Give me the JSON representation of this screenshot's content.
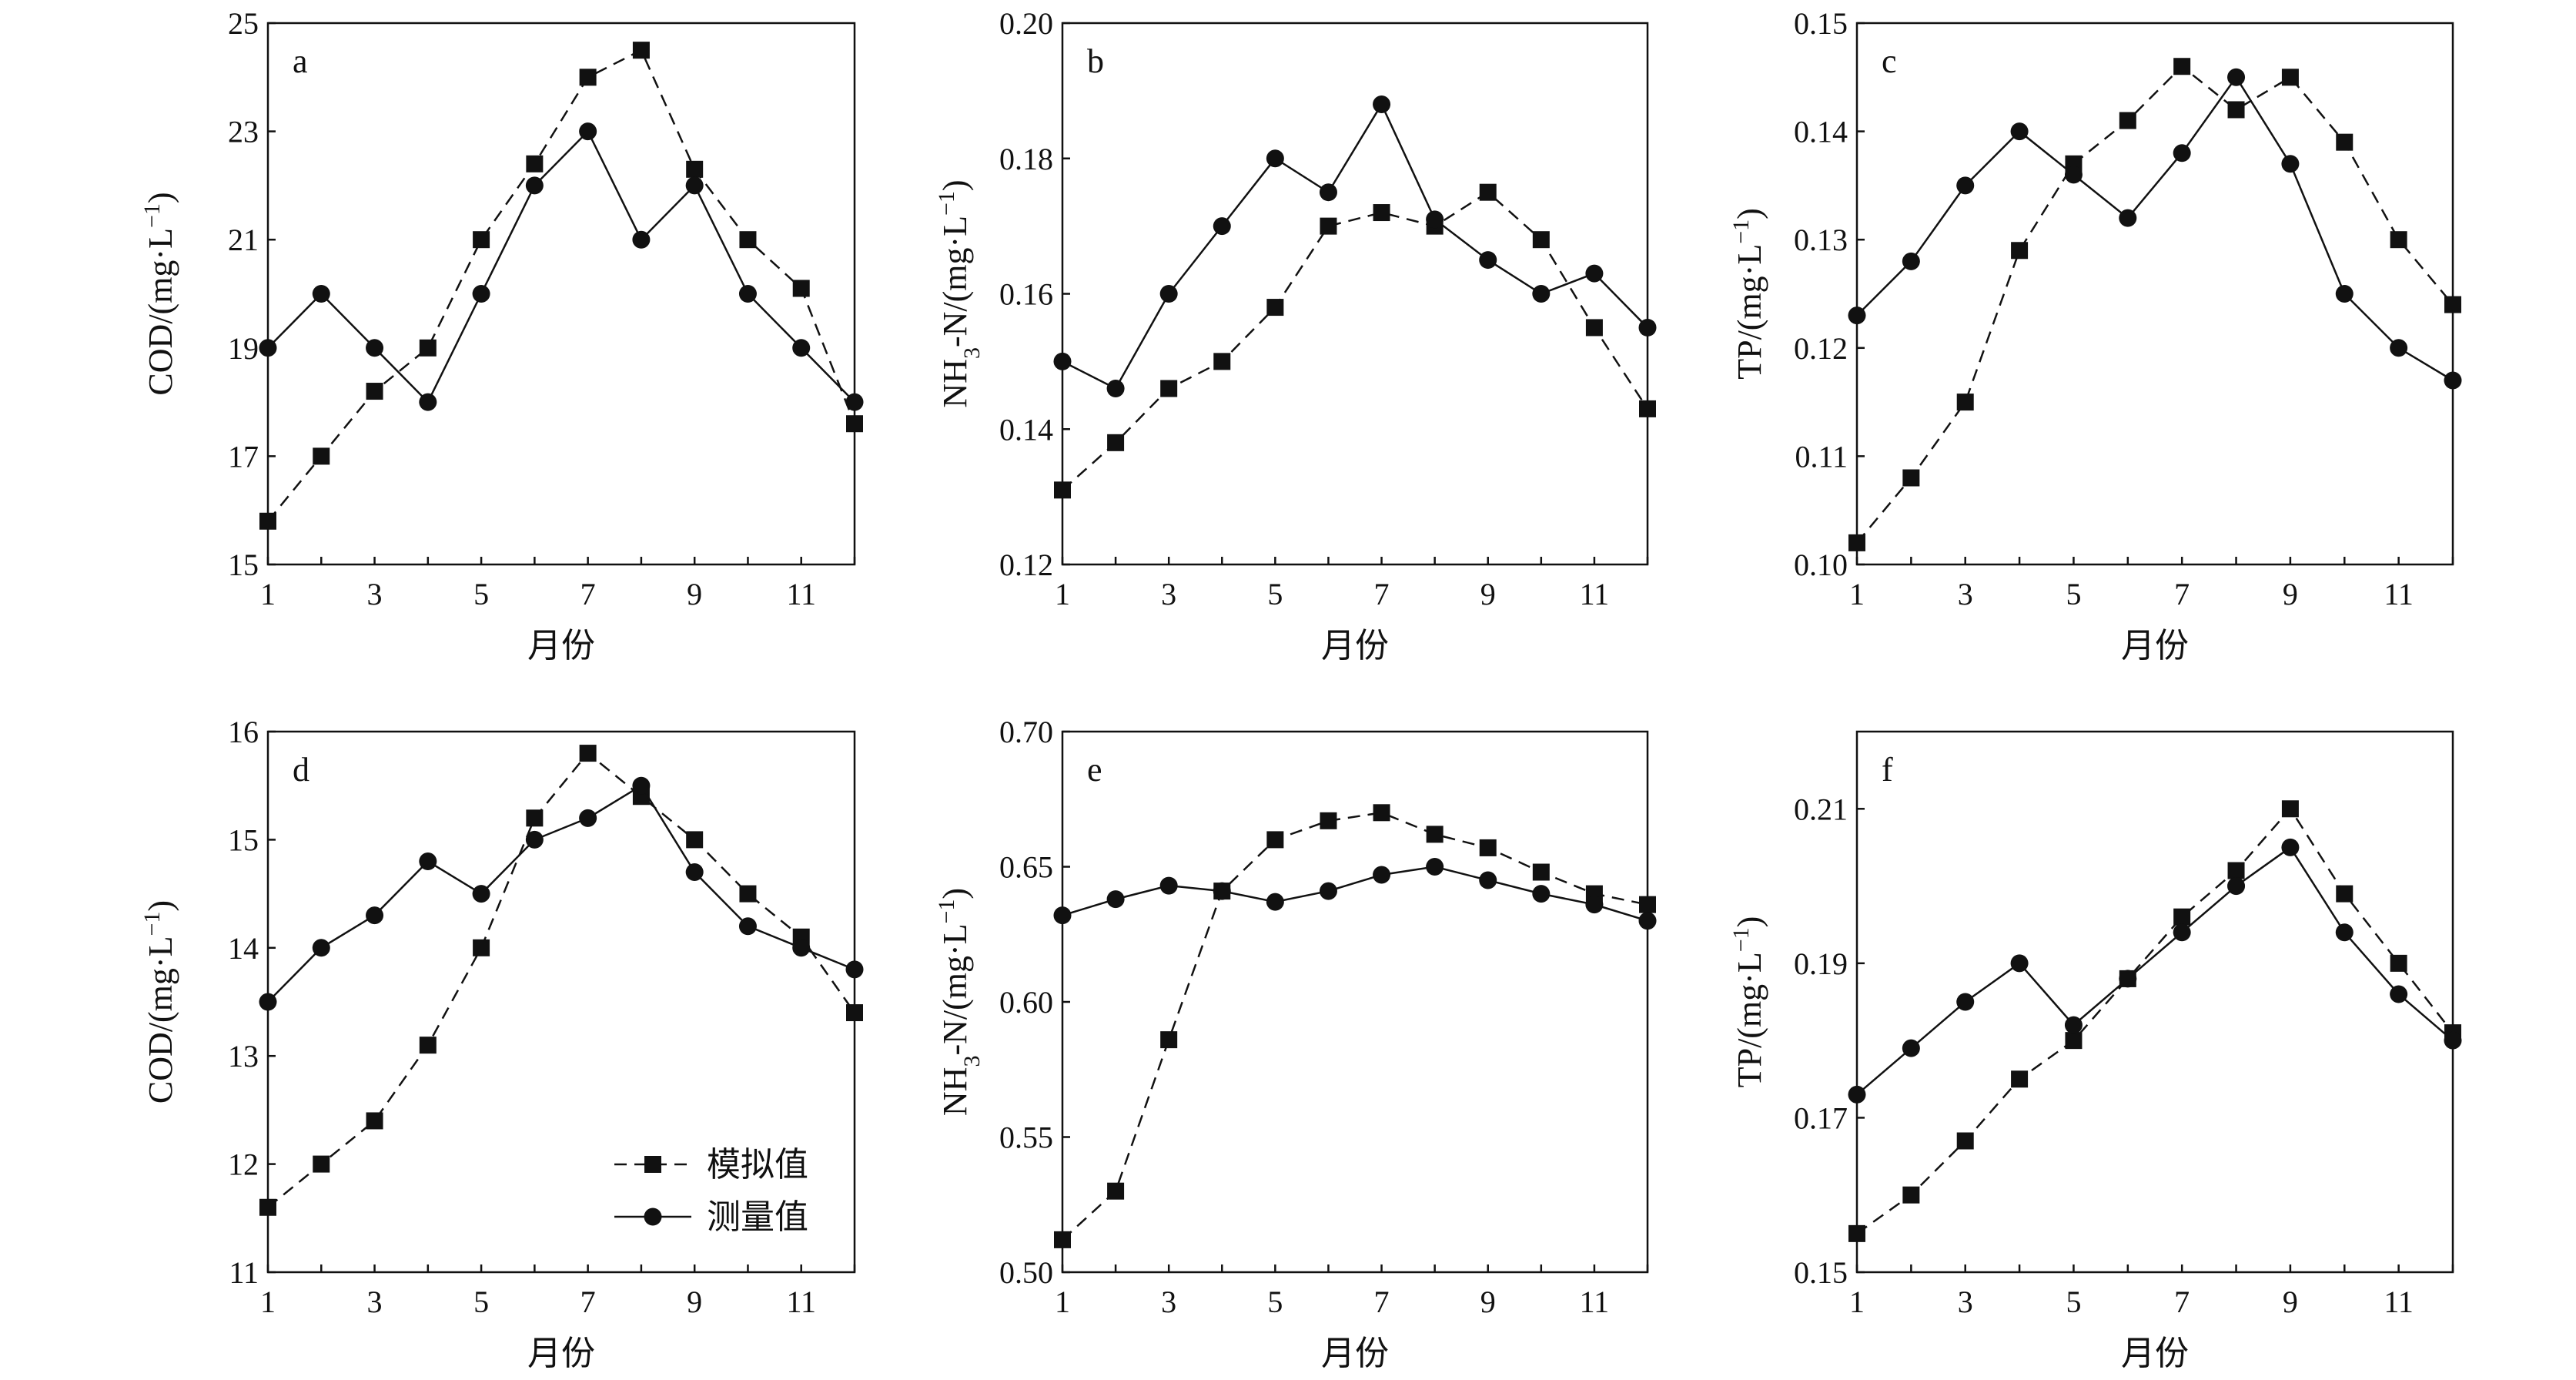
{
  "figure": {
    "legend": {
      "simulated_label": "模拟值",
      "measured_label": "测量值"
    }
  },
  "chart_data": [
    {
      "type": "line",
      "panel": "a",
      "ylabel": "COD/(mg·L⁻¹)",
      "xlabel": "月份",
      "xlim": [
        1,
        12
      ],
      "xticks": [
        1,
        3,
        5,
        7,
        9,
        11
      ],
      "ylim": [
        15,
        25
      ],
      "yticks": [
        15,
        17,
        19,
        21,
        23,
        25
      ],
      "ytick_labels": [
        "15",
        "17",
        "19",
        "21",
        "23",
        "25"
      ],
      "x": [
        1,
        2,
        3,
        4,
        5,
        6,
        7,
        8,
        9,
        10,
        11,
        12
      ],
      "series": [
        {
          "name": "模拟值",
          "marker": "square",
          "line": "dashed",
          "values": [
            15.8,
            17.0,
            18.2,
            19.0,
            21.0,
            22.4,
            24.0,
            24.5,
            22.3,
            21.0,
            20.1,
            17.6
          ]
        },
        {
          "name": "测量值",
          "marker": "circle",
          "line": "solid",
          "values": [
            19.0,
            20.0,
            19.0,
            18.0,
            20.0,
            22.0,
            23.0,
            21.0,
            22.0,
            20.0,
            19.0,
            18.0
          ]
        }
      ]
    },
    {
      "type": "line",
      "panel": "b",
      "ylabel": "NH3-N/(mg·L⁻¹)",
      "xlabel": "月份",
      "xlim": [
        1,
        12
      ],
      "xticks": [
        1,
        3,
        5,
        7,
        9,
        11
      ],
      "ylim": [
        0.12,
        0.2
      ],
      "yticks": [
        0.12,
        0.14,
        0.16,
        0.18,
        0.2
      ],
      "ytick_labels": [
        "0.12",
        "0.14",
        "0.16",
        "0.18",
        "0.20"
      ],
      "x": [
        1,
        2,
        3,
        4,
        5,
        6,
        7,
        8,
        9,
        10,
        11,
        12
      ],
      "series": [
        {
          "name": "模拟值",
          "marker": "square",
          "line": "dashed",
          "values": [
            0.131,
            0.138,
            0.146,
            0.15,
            0.158,
            0.17,
            0.172,
            0.17,
            0.175,
            0.168,
            0.155,
            0.143
          ]
        },
        {
          "name": "测量值",
          "marker": "circle",
          "line": "solid",
          "values": [
            0.15,
            0.146,
            0.16,
            0.17,
            0.18,
            0.175,
            0.188,
            0.171,
            0.165,
            0.16,
            0.163,
            0.155
          ]
        }
      ]
    },
    {
      "type": "line",
      "panel": "c",
      "ylabel": "TP/(mg·L⁻¹)",
      "xlabel": "月份",
      "xlim": [
        1,
        12
      ],
      "xticks": [
        1,
        3,
        5,
        7,
        9,
        11
      ],
      "ylim": [
        0.1,
        0.15
      ],
      "yticks": [
        0.1,
        0.11,
        0.12,
        0.13,
        0.14,
        0.15
      ],
      "ytick_labels": [
        "0.10",
        "0.11",
        "0.12",
        "0.13",
        "0.14",
        "0.15"
      ],
      "x": [
        1,
        2,
        3,
        4,
        5,
        6,
        7,
        8,
        9,
        10,
        11,
        12
      ],
      "series": [
        {
          "name": "模拟值",
          "marker": "square",
          "line": "dashed",
          "values": [
            0.102,
            0.108,
            0.115,
            0.129,
            0.137,
            0.141,
            0.146,
            0.142,
            0.145,
            0.139,
            0.13,
            0.124
          ]
        },
        {
          "name": "测量值",
          "marker": "circle",
          "line": "solid",
          "values": [
            0.123,
            0.128,
            0.135,
            0.14,
            0.136,
            0.132,
            0.138,
            0.145,
            0.137,
            0.125,
            0.12,
            0.117
          ]
        }
      ]
    },
    {
      "type": "line",
      "panel": "d",
      "ylabel": "COD/(mg·L⁻¹)",
      "xlabel": "月份",
      "xlim": [
        1,
        12
      ],
      "xticks": [
        1,
        3,
        5,
        7,
        9,
        11
      ],
      "ylim": [
        11,
        16
      ],
      "yticks": [
        11,
        12,
        13,
        14,
        15,
        16
      ],
      "ytick_labels": [
        "11",
        "12",
        "13",
        "14",
        "15",
        "16"
      ],
      "x": [
        1,
        2,
        3,
        4,
        5,
        6,
        7,
        8,
        9,
        10,
        11,
        12
      ],
      "legend": "lower-right",
      "series": [
        {
          "name": "模拟值",
          "marker": "square",
          "line": "dashed",
          "values": [
            11.6,
            12.0,
            12.4,
            13.1,
            14.0,
            15.2,
            15.8,
            15.4,
            15.0,
            14.5,
            14.1,
            13.4
          ]
        },
        {
          "name": "测量值",
          "marker": "circle",
          "line": "solid",
          "values": [
            13.5,
            14.0,
            14.3,
            14.8,
            14.5,
            15.0,
            15.2,
            15.5,
            14.7,
            14.2,
            14.0,
            13.8
          ]
        }
      ]
    },
    {
      "type": "line",
      "panel": "e",
      "ylabel": "NH3-N/(mg·L⁻¹)",
      "xlabel": "月份",
      "xlim": [
        1,
        12
      ],
      "xticks": [
        1,
        3,
        5,
        7,
        9,
        11
      ],
      "ylim": [
        0.5,
        0.7
      ],
      "yticks": [
        0.5,
        0.55,
        0.6,
        0.65,
        0.7
      ],
      "ytick_labels": [
        "0.50",
        "0.55",
        "0.60",
        "0.65",
        "0.70"
      ],
      "x": [
        1,
        2,
        3,
        4,
        5,
        6,
        7,
        8,
        9,
        10,
        11,
        12
      ],
      "series": [
        {
          "name": "模拟值",
          "marker": "square",
          "line": "dashed",
          "values": [
            0.512,
            0.53,
            0.586,
            0.641,
            0.66,
            0.667,
            0.67,
            0.662,
            0.657,
            0.648,
            0.64,
            0.636
          ]
        },
        {
          "name": "测量值",
          "marker": "circle",
          "line": "solid",
          "values": [
            0.632,
            0.638,
            0.643,
            0.641,
            0.637,
            0.641,
            0.647,
            0.65,
            0.645,
            0.64,
            0.636,
            0.63
          ]
        }
      ]
    },
    {
      "type": "line",
      "panel": "f",
      "ylabel": "TP/(mg·L⁻¹)",
      "xlabel": "月份",
      "xlim": [
        1,
        12
      ],
      "xticks": [
        1,
        3,
        5,
        7,
        9,
        11
      ],
      "ylim": [
        0.15,
        0.22
      ],
      "yticks": [
        0.15,
        0.17,
        0.19,
        0.21
      ],
      "ytick_labels": [
        "0.15",
        "0.17",
        "0.19",
        "0.21"
      ],
      "x": [
        1,
        2,
        3,
        4,
        5,
        6,
        7,
        8,
        9,
        10,
        11,
        12
      ],
      "series": [
        {
          "name": "模拟值",
          "marker": "square",
          "line": "dashed",
          "values": [
            0.155,
            0.16,
            0.167,
            0.175,
            0.18,
            0.188,
            0.196,
            0.202,
            0.21,
            0.199,
            0.19,
            0.181
          ]
        },
        {
          "name": "测量值",
          "marker": "circle",
          "line": "solid",
          "values": [
            0.173,
            0.179,
            0.185,
            0.19,
            0.182,
            0.188,
            0.194,
            0.2,
            0.205,
            0.194,
            0.186,
            0.18
          ]
        }
      ]
    }
  ]
}
